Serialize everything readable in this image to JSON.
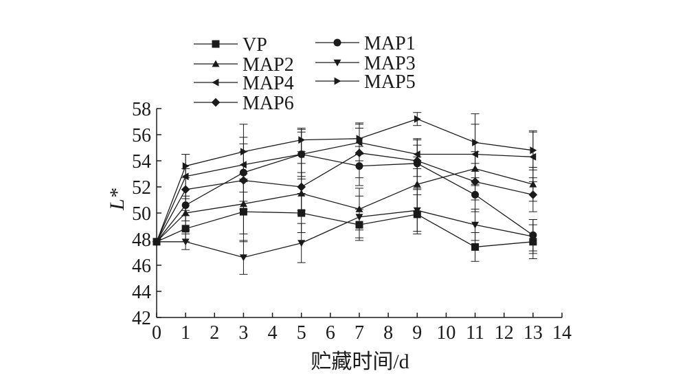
{
  "chart_data": {
    "type": "line",
    "xlabel": "贮藏时间/d",
    "ylabel": "L*",
    "xlim": [
      0,
      14
    ],
    "ylim": [
      42,
      58
    ],
    "x_ticks": [
      0,
      1,
      2,
      3,
      4,
      5,
      6,
      7,
      8,
      9,
      10,
      11,
      12,
      13,
      14
    ],
    "y_ticks": [
      42,
      44,
      46,
      48,
      50,
      52,
      54,
      56,
      58
    ],
    "x": [
      0,
      1,
      3,
      5,
      7,
      9,
      11,
      13
    ],
    "grid": false,
    "legend_position": "top-left",
    "series": [
      {
        "name": "VP",
        "marker": "square",
        "values": [
          47.8,
          48.8,
          50.1,
          50.0,
          49.1,
          49.9,
          47.4,
          47.8
        ],
        "errors": [
          0.2,
          1.0,
          2.3,
          1.5,
          1.2,
          1.5,
          1.1,
          1.3
        ]
      },
      {
        "name": "MAP1",
        "marker": "circle",
        "values": [
          47.8,
          50.6,
          53.1,
          54.5,
          53.6,
          53.8,
          51.4,
          48.3
        ],
        "errors": [
          0.2,
          1.2,
          2.2,
          1.7,
          1.5,
          1.9,
          1.3,
          1.2
        ]
      },
      {
        "name": "MAP2",
        "marker": "triangle-up",
        "values": [
          47.8,
          50.0,
          50.7,
          51.5,
          50.3,
          52.2,
          53.4,
          52.2
        ],
        "errors": [
          0.2,
          1.3,
          2.3,
          1.6,
          1.6,
          2.1,
          1.3,
          1.3
        ]
      },
      {
        "name": "MAP3",
        "marker": "triangle-down",
        "values": [
          47.8,
          47.8,
          46.6,
          47.7,
          49.7,
          50.2,
          49.1,
          48.2
        ],
        "errors": [
          0.2,
          0.6,
          1.3,
          1.5,
          1.6,
          1.6,
          1.2,
          1.3
        ]
      },
      {
        "name": "MAP4",
        "marker": "triangle-left",
        "values": [
          47.8,
          52.8,
          53.7,
          54.5,
          55.4,
          54.5,
          54.5,
          54.3
        ],
        "errors": [
          0.2,
          1.7,
          2.1,
          1.9,
          1.4,
          1.1,
          2.3,
          1.9
        ]
      },
      {
        "name": "MAP5",
        "marker": "triangle-right",
        "values": [
          47.8,
          53.6,
          54.7,
          55.6,
          55.7,
          57.2,
          55.4,
          54.8
        ],
        "errors": [
          0.2,
          0.9,
          2.1,
          0.9,
          1.2,
          0.5,
          2.2,
          1.5
        ]
      },
      {
        "name": "MAP6",
        "marker": "diamond",
        "values": [
          47.8,
          51.8,
          52.5,
          52.0,
          54.6,
          54.0,
          52.4,
          51.4
        ],
        "errors": [
          0.2,
          1.6,
          2.2,
          1.8,
          1.9,
          1.2,
          1.4,
          1.3
        ]
      }
    ]
  }
}
